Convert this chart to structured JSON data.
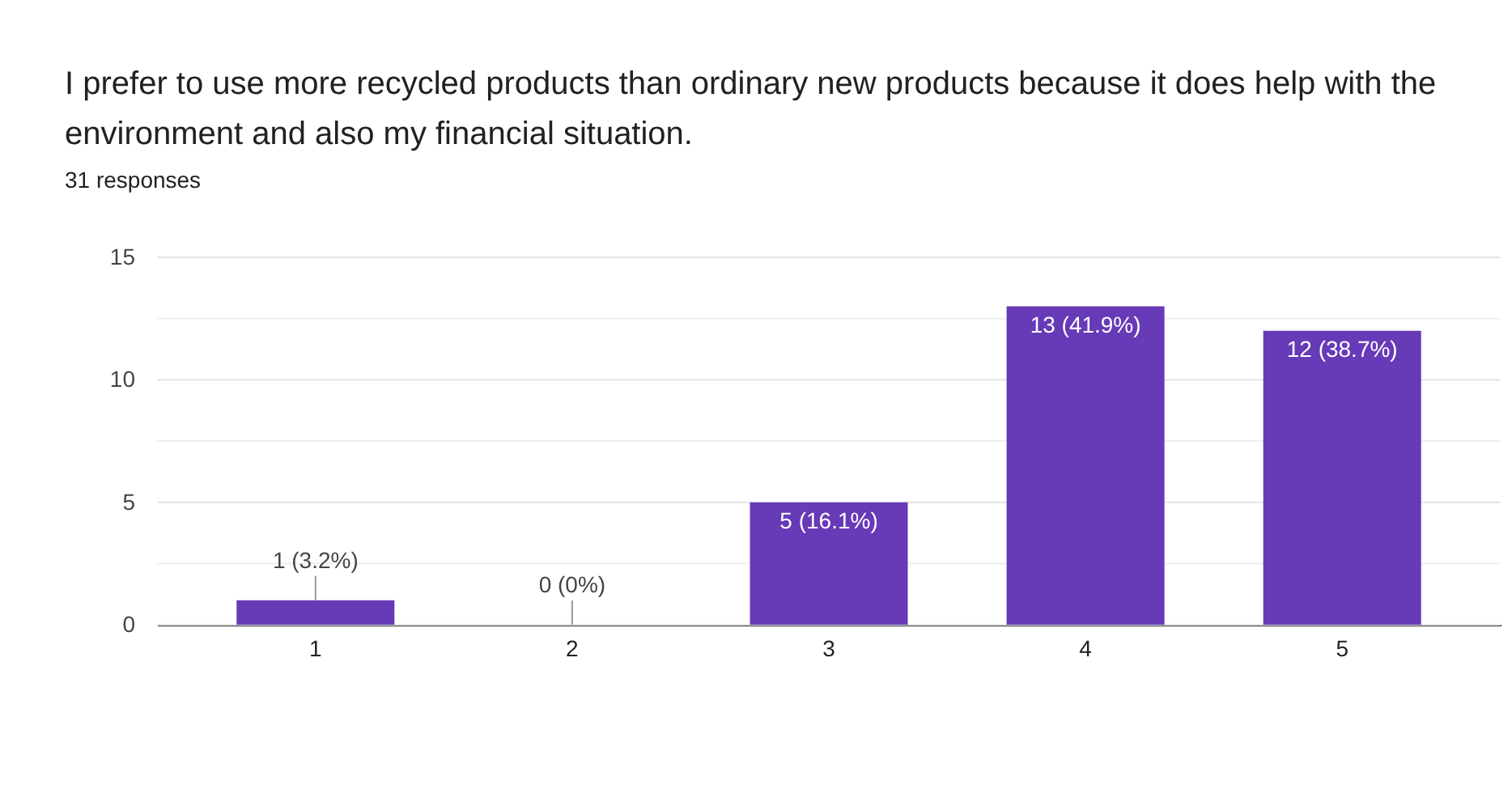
{
  "chart_data": {
    "type": "bar",
    "title": "I prefer to use more recycled products than ordinary new products  because it does help with the environment and also my financial situation.",
    "subtitle": "31 responses",
    "categories": [
      "1",
      "2",
      "3",
      "4",
      "5"
    ],
    "values": [
      1,
      0,
      5,
      13,
      12
    ],
    "value_labels": [
      "1 (3.2%)",
      "0 (0%)",
      "5 (16.1%)",
      "13 (41.9%)",
      "12 (38.7%)"
    ],
    "color": "#673ab7",
    "ylim": [
      0,
      15
    ],
    "yticks": [
      0,
      {
        "value": 2.5,
        "label": null
      },
      5,
      {
        "value": 7.5,
        "label": null
      },
      10,
      {
        "value": 12.5,
        "label": null
      },
      15
    ],
    "grid": "y"
  }
}
